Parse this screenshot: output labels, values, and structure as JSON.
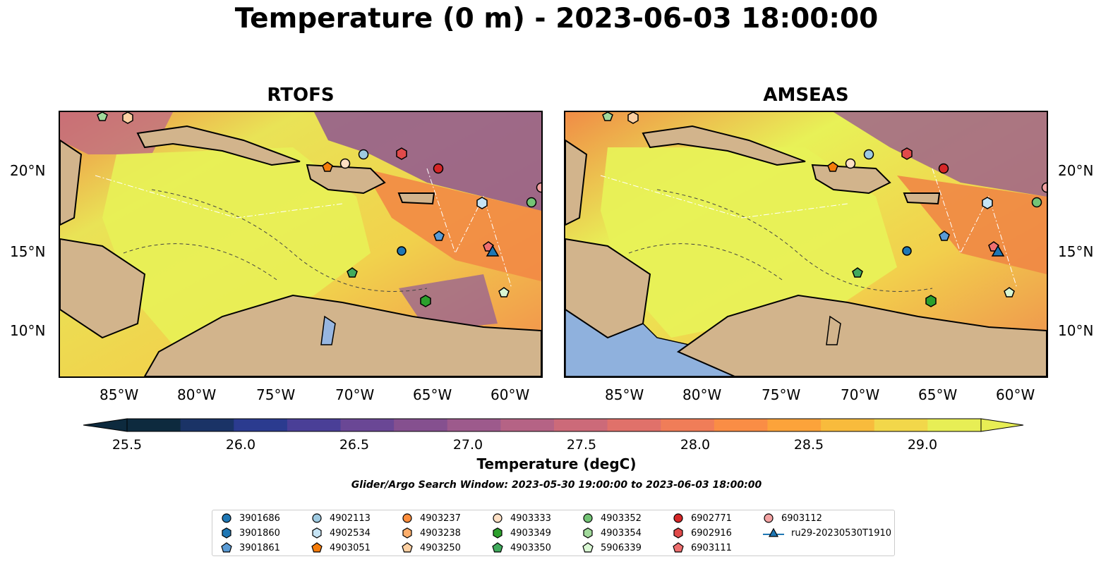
{
  "title": "Temperature (0 m) - 2023-06-03 18:00:00",
  "panels": [
    {
      "title": "RTOFS"
    },
    {
      "title": "AMSEAS"
    }
  ],
  "axes": {
    "lon_ticks": [
      "85°W",
      "80°W",
      "75°W",
      "70°W",
      "65°W",
      "60°W"
    ],
    "lat_ticks": [
      "20°N",
      "15°N",
      "10°N"
    ]
  },
  "colorbar": {
    "label": "Temperature (degC)",
    "ticks": [
      "25.5",
      "26.0",
      "26.5",
      "27.0",
      "27.5",
      "28.0",
      "28.5",
      "29.0"
    ],
    "range": [
      25.5,
      29.25
    ],
    "colors": [
      "#0d2a3e",
      "#1a3366",
      "#2b3b8f",
      "#4a3f97",
      "#6a4795",
      "#85508f",
      "#9d5a8c",
      "#b56385",
      "#cc6a79",
      "#e0716a",
      "#f07d58",
      "#fa8d45",
      "#fca33a",
      "#f8bb3c",
      "#f2d74a",
      "#e7ee55"
    ],
    "extend": "both"
  },
  "search_window": "Glider/Argo Search Window: 2023-05-30 19:00:00 to 2023-06-03 18:00:00",
  "legend": [
    {
      "label": "3901686",
      "marker": "circle",
      "color": "#1f77b4"
    },
    {
      "label": "3901860",
      "marker": "hexagon",
      "color": "#1f77b4"
    },
    {
      "label": "3901861",
      "marker": "pentagon",
      "color": "#5a9bd5"
    },
    {
      "label": "4902113",
      "marker": "circle",
      "color": "#9ecae1"
    },
    {
      "label": "4902534",
      "marker": "hexagon",
      "color": "#c6e4f5"
    },
    {
      "label": "4903051",
      "marker": "pentagon",
      "color": "#f57c0a"
    },
    {
      "label": "4903237",
      "marker": "circle",
      "color": "#fd8d3c"
    },
    {
      "label": "4903238",
      "marker": "hexagon",
      "color": "#fdae6b"
    },
    {
      "label": "4903250",
      "marker": "pentagon",
      "color": "#fdd0a2"
    },
    {
      "label": "4903333",
      "marker": "circle",
      "color": "#fee0c5"
    },
    {
      "label": "4903349",
      "marker": "hexagon",
      "color": "#2ca02c"
    },
    {
      "label": "4903350",
      "marker": "pentagon",
      "color": "#41ab5d"
    },
    {
      "label": "4903352",
      "marker": "circle",
      "color": "#74c476"
    },
    {
      "label": "4903354",
      "marker": "hexagon",
      "color": "#a1d99b"
    },
    {
      "label": "5906339",
      "marker": "pentagon",
      "color": "#d9f7d3"
    },
    {
      "label": "6902771",
      "marker": "circle",
      "color": "#d62728"
    },
    {
      "label": "6902916",
      "marker": "hexagon",
      "color": "#e04a4a"
    },
    {
      "label": "6903111",
      "marker": "pentagon",
      "color": "#ef6f6f"
    },
    {
      "label": "6903112",
      "marker": "circle",
      "color": "#f4a3a3"
    },
    {
      "label": "ru29-20230530T1910",
      "marker": "triangle-line",
      "color": "#1f77b4"
    }
  ],
  "chart_data": {
    "type": "map",
    "lon_range": [
      -89,
      -58
    ],
    "lat_range": [
      7,
      24
    ],
    "markers": [
      {
        "id": "3901686",
        "lon": -67,
        "lat": 15.1
      },
      {
        "id": "3901860",
        "lon": -61.5,
        "lat": 18.1
      },
      {
        "id": "3901861",
        "lon": -64.8,
        "lat": 15.9
      },
      {
        "id": "4902113",
        "lon": -69.8,
        "lat": 21.1
      },
      {
        "id": "4902534",
        "lon": -61.6,
        "lat": 18.1
      },
      {
        "id": "4903051",
        "lon": -72.1,
        "lat": 20.3
      },
      {
        "id": "4903333",
        "lon": -70.5,
        "lat": 20.5
      },
      {
        "id": "4903349",
        "lon": -68,
        "lat": 13.6
      },
      {
        "id": "4903350",
        "lon": -70.5,
        "lat": 13.7
      },
      {
        "id": "4903352",
        "lon": -59,
        "lat": 18.1
      },
      {
        "id": "5906339",
        "lon": -60.4,
        "lat": 12.5
      },
      {
        "id": "6902771",
        "lon": -64.8,
        "lat": 20.2
      },
      {
        "id": "6902916",
        "lon": -67.4,
        "lat": 21.1
      },
      {
        "id": "6903111",
        "lon": -61.5,
        "lat": 15.4
      },
      {
        "id": "6903112",
        "lon": -58.2,
        "lat": 19.1
      },
      {
        "id": "ru29-20230530T1910",
        "lon": -61.2,
        "lat": 15.1
      }
    ]
  }
}
